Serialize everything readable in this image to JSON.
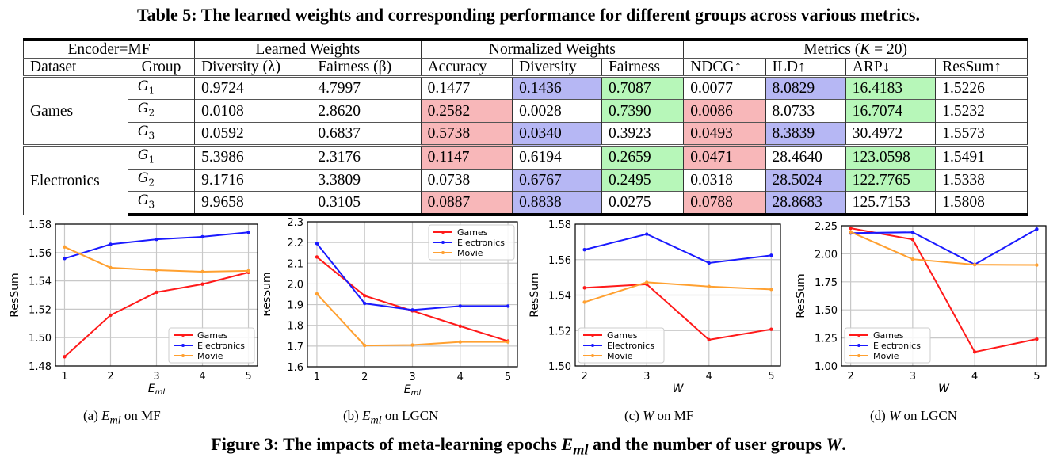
{
  "table": {
    "caption": "Table 5: The learned weights and corresponding performance for different groups across various metrics.",
    "header_groups": [
      "Encoder=MF",
      "Learned Weights",
      "Normalized Weights",
      "Metrics (K = 20)"
    ],
    "columns": [
      "Dataset",
      "Group",
      "Diversity (λ)",
      "Fairness (β)",
      "Accuracy",
      "Diversity",
      "Fairness",
      "NDCG↑",
      "ILD↑",
      "ARP↓",
      "ResSum↑"
    ],
    "highlight_colors": {
      "red": "#f8b7b9",
      "blue": "#b6b7f4",
      "green": "#b7f7b9"
    },
    "datasets": [
      {
        "name": "Games",
        "rows": [
          {
            "group": "G",
            "sub": "1",
            "values": [
              "0.9724",
              "4.7997",
              "0.1477",
              "0.1436",
              "0.7087",
              "0.0077",
              "8.0829",
              "16.4183",
              "1.5226"
            ],
            "highlights": [
              "",
              "",
              "",
              "blue",
              "green",
              "",
              "blue",
              "green",
              ""
            ]
          },
          {
            "group": "G",
            "sub": "2",
            "values": [
              "0.0108",
              "2.8620",
              "0.2582",
              "0.0028",
              "0.7390",
              "0.0086",
              "8.0733",
              "16.7074",
              "1.5232"
            ],
            "highlights": [
              "",
              "",
              "red",
              "",
              "green",
              "red",
              "",
              "green",
              ""
            ]
          },
          {
            "group": "G",
            "sub": "3",
            "values": [
              "0.0592",
              "0.6837",
              "0.5738",
              "0.0340",
              "0.3923",
              "0.0493",
              "8.3839",
              "30.4972",
              "1.5573"
            ],
            "highlights": [
              "",
              "",
              "red",
              "blue",
              "",
              "red",
              "blue",
              "",
              ""
            ]
          }
        ]
      },
      {
        "name": "Electronics",
        "rows": [
          {
            "group": "G",
            "sub": "1",
            "values": [
              "5.3986",
              "2.3176",
              "0.1147",
              "0.6194",
              "0.2659",
              "0.0471",
              "28.4640",
              "123.0598",
              "1.5491"
            ],
            "highlights": [
              "",
              "",
              "red",
              "",
              "green",
              "red",
              "",
              "green",
              ""
            ]
          },
          {
            "group": "G",
            "sub": "2",
            "values": [
              "9.1716",
              "3.3809",
              "0.0738",
              "0.6767",
              "0.2495",
              "0.0318",
              "28.5024",
              "122.7765",
              "1.5338"
            ],
            "highlights": [
              "",
              "",
              "",
              "blue",
              "green",
              "",
              "blue",
              "green",
              ""
            ]
          },
          {
            "group": "G",
            "sub": "3",
            "values": [
              "9.9658",
              "0.3105",
              "0.0887",
              "0.8838",
              "0.0275",
              "0.0788",
              "28.8683",
              "125.7153",
              "1.5808"
            ],
            "highlights": [
              "",
              "",
              "red",
              "blue",
              "",
              "red",
              "blue",
              "",
              ""
            ]
          }
        ]
      }
    ]
  },
  "chart_data": [
    {
      "type": "line",
      "caption": "(a) E_ml on MF",
      "caption_parts": {
        "label": "(a)",
        "var": "E",
        "sub": "ml",
        "rest": "on MF"
      },
      "xlabel": "E_ml",
      "ylabel": "ResSum",
      "x": [
        1,
        2,
        3,
        4,
        5
      ],
      "xticks": [
        "1",
        "2",
        "3",
        "4",
        "5"
      ],
      "ylim": [
        1.48,
        1.58
      ],
      "yticks": [
        "1.48",
        "1.50",
        "1.52",
        "1.54",
        "1.56",
        "1.58"
      ],
      "grid": true,
      "legend": "lower-right",
      "series": [
        {
          "name": "Games",
          "color": "#ff1a1a",
          "values": [
            1.4865,
            1.5158,
            1.532,
            1.5377,
            1.546
          ]
        },
        {
          "name": "Electronics",
          "color": "#1a1aff",
          "values": [
            1.5558,
            1.5658,
            1.5693,
            1.5711,
            1.5743
          ]
        },
        {
          "name": "Movie",
          "color": "#ffa030",
          "values": [
            1.5639,
            1.5493,
            1.5476,
            1.5465,
            1.5471
          ]
        }
      ]
    },
    {
      "type": "line",
      "caption": "(b) E_ml on LGCN",
      "caption_parts": {
        "label": "(b)",
        "var": "E",
        "sub": "ml",
        "rest": "on LGCN"
      },
      "xlabel": "E_ml",
      "ylabel": "ResSum",
      "x": [
        1,
        2,
        3,
        4,
        5
      ],
      "xticks": [
        "1",
        "2",
        "3",
        "4",
        "5"
      ],
      "ylim": [
        1.6,
        2.3
      ],
      "yticks": [
        "1.6",
        "1.7",
        "1.8",
        "1.9",
        "2.0",
        "2.1",
        "2.2",
        "2.3"
      ],
      "grid": true,
      "legend": "upper-right",
      "series": [
        {
          "name": "Games",
          "color": "#ff1a1a",
          "values": [
            2.13,
            1.943,
            1.87,
            1.796,
            1.724
          ]
        },
        {
          "name": "Electronics",
          "color": "#1a1aff",
          "values": [
            2.195,
            1.906,
            1.874,
            1.893,
            1.893
          ]
        },
        {
          "name": "Movie",
          "color": "#ffa030",
          "values": [
            1.952,
            1.703,
            1.705,
            1.72,
            1.72
          ]
        }
      ]
    },
    {
      "type": "line",
      "caption": "(c) W on MF",
      "caption_parts": {
        "label": "(c)",
        "var": "W",
        "sub": "",
        "rest": "on MF"
      },
      "xlabel": "W",
      "ylabel": "ResSum",
      "x": [
        2,
        3,
        4,
        5
      ],
      "xticks": [
        "2",
        "3",
        "4",
        "5"
      ],
      "ylim": [
        1.5,
        1.58
      ],
      "yticks": [
        "1.50",
        "1.52",
        "1.54",
        "1.56",
        "1.58"
      ],
      "grid": true,
      "legend": "lower-left",
      "series": [
        {
          "name": "Games",
          "color": "#ff1a1a",
          "values": [
            1.5441,
            1.5461,
            1.5148,
            1.5207
          ]
        },
        {
          "name": "Electronics",
          "color": "#1a1aff",
          "values": [
            1.5656,
            1.5744,
            1.5581,
            1.5624
          ]
        },
        {
          "name": "Movie",
          "color": "#ffa030",
          "values": [
            1.536,
            1.5472,
            1.5448,
            1.5432
          ]
        }
      ]
    },
    {
      "type": "line",
      "caption": "(d) W on LGCN",
      "caption_parts": {
        "label": "(d)",
        "var": "W",
        "sub": "",
        "rest": "on LGCN"
      },
      "xlabel": "W",
      "ylabel": "ResSum",
      "x": [
        2,
        3,
        4,
        5
      ],
      "xticks": [
        "2",
        "3",
        "4",
        "5"
      ],
      "ylim": [
        1.0,
        2.25
      ],
      "yticks": [
        "1.00",
        "1.25",
        "1.50",
        "1.75",
        "2.00",
        "2.25"
      ],
      "grid": true,
      "legend": "lower-left",
      "series": [
        {
          "name": "Games",
          "color": "#ff1a1a",
          "values": [
            2.228,
            2.128,
            1.125,
            1.24
          ]
        },
        {
          "name": "Electronics",
          "color": "#1a1aff",
          "values": [
            2.185,
            2.192,
            1.905,
            2.22
          ]
        },
        {
          "name": "Movie",
          "color": "#ffa030",
          "values": [
            2.195,
            1.952,
            1.903,
            1.9
          ]
        }
      ]
    }
  ],
  "figure": {
    "caption_prefix": "Figure 3: The impacts of meta-learning epochs",
    "caption_var": "E",
    "caption_sub": "ml",
    "caption_mid": "and the number of user groups",
    "caption_var2": "W",
    "caption_end": "."
  }
}
